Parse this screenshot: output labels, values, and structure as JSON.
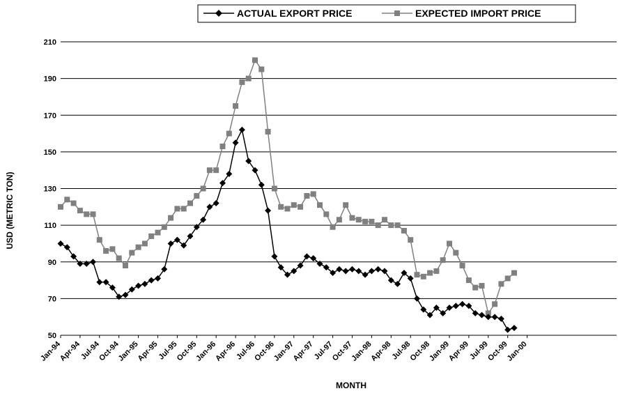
{
  "chart_data": {
    "type": "line",
    "title": "",
    "xlabel": "MONTH",
    "ylabel": "USD (METRIC TON)",
    "ylim": [
      50,
      210
    ],
    "yticks": [
      50,
      70,
      90,
      110,
      130,
      150,
      170,
      190,
      210
    ],
    "grid": "horizontal",
    "legend_position": "top",
    "x_tick_labels": [
      "Jan-94",
      "Apr-94",
      "Jul-94",
      "Oct-94",
      "Jan-95",
      "Apr-95",
      "Jul-95",
      "Oct-95",
      "Jan-96",
      "Apr-96",
      "Jul-96",
      "Oct-96",
      "Jan-97",
      "Apr-97",
      "Jul-97",
      "Oct-97",
      "Jan-98",
      "Apr-98",
      "Jul-98",
      "Oct-98",
      "Jan-99",
      "Apr-99",
      "Jul-99",
      "Oct-99",
      "Jan-00"
    ],
    "series": [
      {
        "name": "ACTUAL EXPORT PRICE",
        "color": "#000000",
        "marker": "diamond",
        "values": [
          100,
          98,
          93,
          89,
          89,
          90,
          79,
          79,
          76,
          71,
          72,
          75,
          77,
          78,
          80,
          81,
          86,
          100,
          102,
          99,
          104,
          109,
          113,
          120,
          122,
          133,
          138,
          155,
          162,
          145,
          140,
          132,
          118,
          93,
          87,
          83,
          85,
          88,
          93,
          92,
          89,
          87,
          84,
          86,
          85,
          86,
          85,
          83,
          85,
          86,
          85,
          80,
          78,
          84,
          81,
          70,
          64,
          61,
          65,
          62,
          65,
          66,
          67,
          66,
          62,
          61,
          60,
          60,
          59,
          53,
          54
        ]
      },
      {
        "name": "EXPECTED IMPORT PRICE",
        "color": "#808080",
        "marker": "square",
        "values": [
          120,
          124,
          122,
          118,
          116,
          116,
          102,
          96,
          97,
          92,
          88,
          95,
          98,
          100,
          104,
          106,
          109,
          114,
          119,
          119,
          122,
          126,
          130,
          140,
          140,
          153,
          160,
          175,
          188,
          190,
          200,
          195,
          161,
          130,
          120,
          119,
          121,
          120,
          126,
          127,
          121,
          116,
          109,
          113,
          121,
          114,
          113,
          112,
          112,
          110,
          113,
          110,
          110,
          107,
          102,
          83,
          82,
          84,
          85,
          91,
          100,
          95,
          88,
          80,
          76,
          77,
          62,
          67,
          78,
          81,
          84
        ]
      }
    ]
  }
}
